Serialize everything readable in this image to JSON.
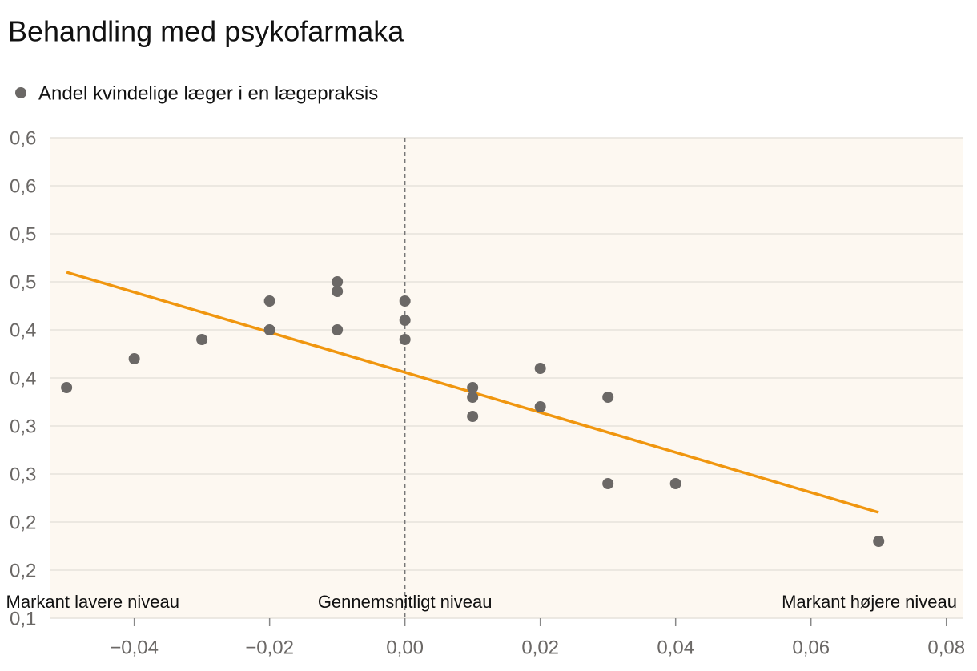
{
  "chart_data": {
    "type": "scatter",
    "title": "Behandling med psykofarmaka",
    "series": [
      {
        "name": "Andel kvindelige læger i en lægepraksis",
        "color": "#6b6866",
        "x": [
          -0.05,
          -0.04,
          -0.03,
          -0.02,
          -0.02,
          -0.01,
          -0.01,
          -0.01,
          0.0,
          0.0,
          0.0,
          0.01,
          0.01,
          0.01,
          0.02,
          0.02,
          0.03,
          0.03,
          0.04,
          0.07
        ],
        "values": [
          0.34,
          0.37,
          0.39,
          0.43,
          0.4,
          0.45,
          0.44,
          0.4,
          0.43,
          0.41,
          0.39,
          0.34,
          0.33,
          0.31,
          0.36,
          0.32,
          0.33,
          0.24,
          0.24,
          0.18
        ]
      }
    ],
    "trend": {
      "x": [
        -0.05,
        0.07
      ],
      "values": [
        0.46,
        0.21
      ],
      "color": "#f0960f"
    },
    "annotations": [
      "Markant lavere niveau",
      "Gennemsnitligt niveau",
      "Markant højere niveau"
    ],
    "xlim": [
      -0.0525,
      0.0824
    ],
    "ylim": [
      0.1,
      0.6
    ],
    "xticks": [
      {
        "value": -0.04,
        "label": "−0,04"
      },
      {
        "value": -0.02,
        "label": "−0,02"
      },
      {
        "value": 0.0,
        "label": "0,00"
      },
      {
        "value": 0.02,
        "label": "0,02"
      },
      {
        "value": 0.04,
        "label": "0,04"
      },
      {
        "value": 0.06,
        "label": "0,06"
      },
      {
        "value": 0.08,
        "label": "0,08"
      }
    ],
    "yticks": [
      {
        "value": 0.6,
        "label": "0,6"
      },
      {
        "value": 0.55,
        "label": "0,6"
      },
      {
        "value": 0.5,
        "label": "0,5"
      },
      {
        "value": 0.45,
        "label": "0,5"
      },
      {
        "value": 0.4,
        "label": "0,4"
      },
      {
        "value": 0.35,
        "label": "0,4"
      },
      {
        "value": 0.3,
        "label": "0,3"
      },
      {
        "value": 0.25,
        "label": "0,3"
      },
      {
        "value": 0.2,
        "label": "0,2"
      },
      {
        "value": 0.15,
        "label": "0,2"
      },
      {
        "value": 0.1,
        "label": "0,1"
      }
    ],
    "reference_x": 0.0,
    "grid": true,
    "background": "#fdf8f1"
  }
}
